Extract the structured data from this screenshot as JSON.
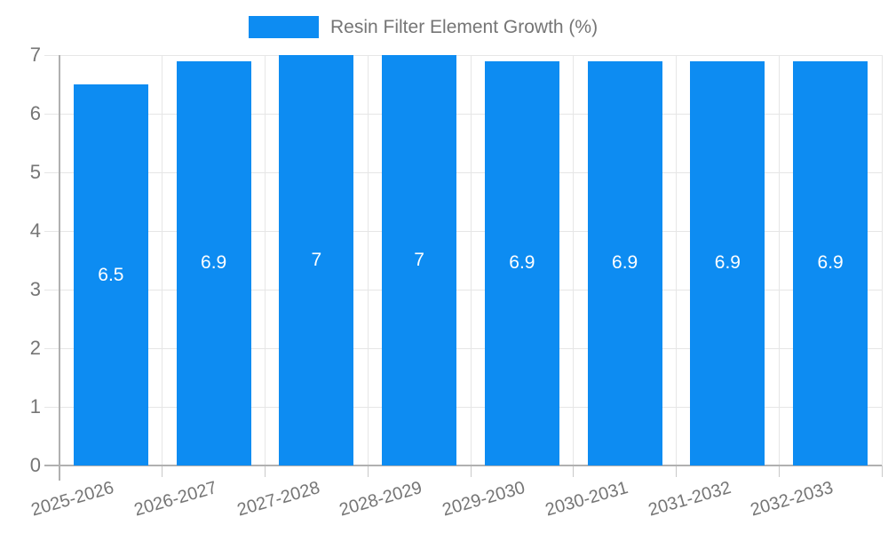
{
  "legend": {
    "series_label": "Resin Filter Element Growth (%)"
  },
  "chart_data": {
    "type": "bar",
    "title": "Resin Filter Element Growth (%)",
    "xlabel": "",
    "ylabel": "",
    "categories": [
      "2025-2026",
      "2026-2027",
      "2027-2028",
      "2028-2029",
      "2029-2030",
      "2030-2031",
      "2031-2032",
      "2032-2033"
    ],
    "values": [
      6.5,
      6.9,
      7,
      7,
      6.9,
      6.9,
      6.9,
      6.9
    ],
    "bar_labels": [
      "6.5",
      "6.9",
      "7",
      "7",
      "6.9",
      "6.9",
      "6.9",
      "6.9"
    ],
    "ylim": [
      0,
      7
    ],
    "yticks": [
      0,
      1,
      2,
      3,
      4,
      5,
      6,
      7
    ],
    "grid": true,
    "legend_position": "top",
    "colors": {
      "bar": "#0d8cf2",
      "axis": "#b0b0b0",
      "gridline": "#e6e6e6",
      "tick": "#c9c9c9",
      "axis_label": "#757575",
      "bar_label": "#ffffff",
      "background": "#ffffff"
    }
  }
}
